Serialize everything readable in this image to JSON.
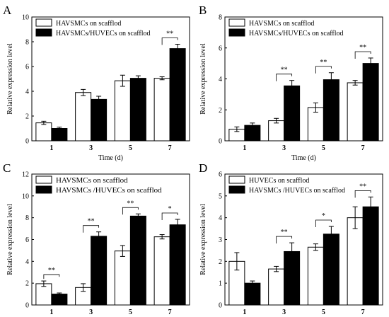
{
  "chart_data": [
    {
      "panel": "A",
      "type": "bar",
      "categories": [
        "1",
        "3",
        "5",
        "7"
      ],
      "series": [
        {
          "name": "HAVSMCs on scafflod",
          "values": [
            1.45,
            3.9,
            4.85,
            5.05
          ],
          "errors": [
            0.13,
            0.25,
            0.45,
            0.12
          ],
          "color": "#ffffff"
        },
        {
          "name": "HAVSMCs/HUVECs on scafflod",
          "values": [
            1.0,
            3.35,
            5.05,
            7.45
          ],
          "errors": [
            0.1,
            0.25,
            0.2,
            0.35
          ],
          "color": "#000000"
        }
      ],
      "significance": [
        {
          "category": "7",
          "label": "**"
        }
      ],
      "xlabel": "Time (d)",
      "ylabel": "Relative expression level",
      "ylim": [
        0,
        10
      ],
      "yticks": [
        0,
        2,
        4,
        6,
        8,
        10
      ],
      "legend": "top-left"
    },
    {
      "panel": "B",
      "type": "bar",
      "categories": [
        "1",
        "3",
        "5",
        "7"
      ],
      "series": [
        {
          "name": "HAVSMCs on scafflod",
          "values": [
            0.75,
            1.3,
            2.15,
            3.75
          ],
          "errors": [
            0.15,
            0.15,
            0.3,
            0.15
          ],
          "color": "#ffffff"
        },
        {
          "name": "HAVSMCs/HUVECs on scafflod",
          "values": [
            1.0,
            3.55,
            3.95,
            5.0
          ],
          "errors": [
            0.15,
            0.35,
            0.45,
            0.35
          ],
          "color": "#000000"
        }
      ],
      "significance": [
        {
          "category": "3",
          "label": "**"
        },
        {
          "category": "5",
          "label": "**"
        },
        {
          "category": "7",
          "label": "**"
        }
      ],
      "xlabel": "Time (d)",
      "ylabel": "Relative expression level",
      "ylim": [
        0,
        8
      ],
      "yticks": [
        0,
        2,
        4,
        6,
        8
      ],
      "legend": "top-left"
    },
    {
      "panel": "C",
      "type": "bar",
      "categories": [
        "1",
        "3",
        "5",
        "7"
      ],
      "series": [
        {
          "name": "HAVSMCs on scafflod",
          "values": [
            1.95,
            1.6,
            4.95,
            6.25
          ],
          "errors": [
            0.25,
            0.35,
            0.5,
            0.2
          ],
          "color": "#ffffff"
        },
        {
          "name": "HAVSMCs /HUVECs on scafflod",
          "values": [
            1.0,
            6.3,
            8.15,
            7.35
          ],
          "errors": [
            0.1,
            0.4,
            0.2,
            0.5
          ],
          "color": "#000000"
        }
      ],
      "significance": [
        {
          "category": "1",
          "label": "**"
        },
        {
          "category": "3",
          "label": "**"
        },
        {
          "category": "5",
          "label": "**"
        },
        {
          "category": "7",
          "label": "*"
        }
      ],
      "xlabel": "Time (d)",
      "ylabel": "Relative expression level",
      "ylim": [
        0,
        12
      ],
      "yticks": [
        0,
        2,
        4,
        6,
        8,
        10,
        12
      ],
      "legend": "top-left"
    },
    {
      "panel": "D",
      "type": "bar",
      "categories": [
        "1",
        "3",
        "5",
        "7"
      ],
      "series": [
        {
          "name": "HUVECs on scafflod",
          "values": [
            2.0,
            1.65,
            2.65,
            4.0
          ],
          "errors": [
            0.4,
            0.12,
            0.15,
            0.5
          ],
          "color": "#ffffff"
        },
        {
          "name": "HAVSMCs /HUVECs on scafflod",
          "values": [
            1.0,
            2.45,
            3.25,
            4.5
          ],
          "errors": [
            0.1,
            0.4,
            0.35,
            0.45
          ],
          "color": "#000000"
        }
      ],
      "significance": [
        {
          "category": "3",
          "label": "**"
        },
        {
          "category": "5",
          "label": "*"
        },
        {
          "category": "7",
          "label": "**"
        }
      ],
      "xlabel": "Time (d)",
      "ylabel": "Relative expression level",
      "ylim": [
        0,
        6
      ],
      "yticks": [
        0,
        1,
        2,
        3,
        4,
        5,
        6
      ],
      "legend": "top-left"
    }
  ]
}
